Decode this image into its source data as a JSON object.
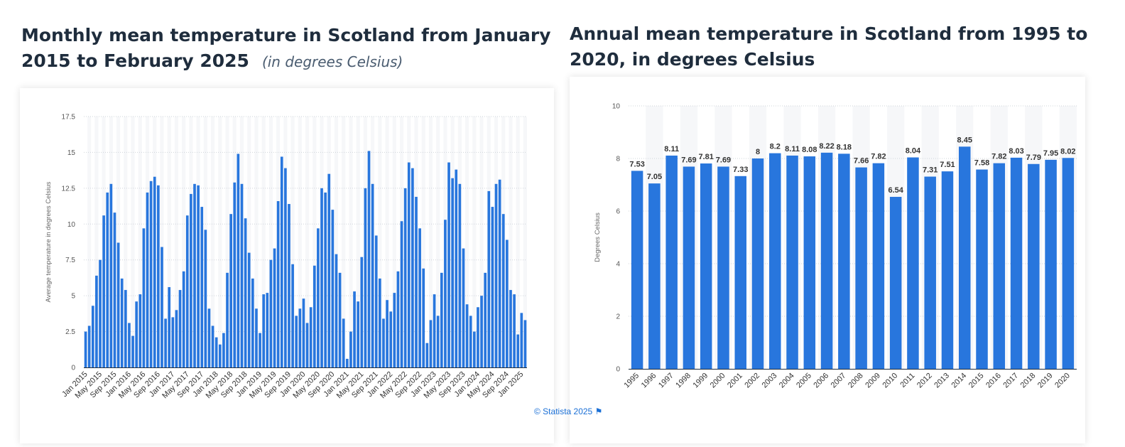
{
  "left_chart": {
    "title": "Monthly mean temperature in Scotland from January 2015 to February 2025",
    "subtitle": "(in degrees Celsius)"
  },
  "right_chart": {
    "title": "Annual mean temperature in Scotland from 1995 to 2020, in degrees Celsius"
  },
  "footer": {
    "copyright": "© Statista 2025",
    "flag_icon": "flag-icon"
  },
  "colors": {
    "bar": "#2876dd",
    "band": "#f6f7f9",
    "grid": "#cfd4da",
    "axis": "#1f2d3d",
    "link": "#1a6fd6"
  },
  "chart_data": [
    {
      "type": "bar",
      "ylabel": "Average temperature in degrees Celsius",
      "xlabel": "",
      "ylim": [
        0,
        17.5
      ],
      "yticks": [
        "0",
        "2.5",
        "5",
        "7.5",
        "10",
        "12.5",
        "15",
        "17.5"
      ],
      "grid": true,
      "categories": [
        "Jan 2015",
        "Feb 2015",
        "Mar 2015",
        "Apr 2015",
        "May 2015",
        "Jun 2015",
        "Jul 2015",
        "Aug 2015",
        "Sep 2015",
        "Oct 2015",
        "Nov 2015",
        "Dec 2015",
        "Jan 2016",
        "Feb 2016",
        "Mar 2016",
        "Apr 2016",
        "May 2016",
        "Jun 2016",
        "Jul 2016",
        "Aug 2016",
        "Sep 2016",
        "Oct 2016",
        "Nov 2016",
        "Dec 2016",
        "Jan 2017",
        "Feb 2017",
        "Mar 2017",
        "Apr 2017",
        "May 2017",
        "Jun 2017",
        "Jul 2017",
        "Aug 2017",
        "Sep 2017",
        "Oct 2017",
        "Nov 2017",
        "Dec 2017",
        "Jan 2018",
        "Feb 2018",
        "Mar 2018",
        "Apr 2018",
        "May 2018",
        "Jun 2018",
        "Jul 2018",
        "Aug 2018",
        "Sep 2018",
        "Oct 2018",
        "Nov 2018",
        "Dec 2018",
        "Jan 2019",
        "Feb 2019",
        "Mar 2019",
        "Apr 2019",
        "May 2019",
        "Jun 2019",
        "Jul 2019",
        "Aug 2019",
        "Sep 2019",
        "Oct 2019",
        "Nov 2019",
        "Dec 2019",
        "Jan 2020",
        "Feb 2020",
        "Mar 2020",
        "Apr 2020",
        "May 2020",
        "Jun 2020",
        "Jul 2020",
        "Aug 2020",
        "Sep 2020",
        "Oct 2020",
        "Nov 2020",
        "Dec 2020",
        "Jan 2021",
        "Feb 2021",
        "Mar 2021",
        "Apr 2021",
        "May 2021",
        "Jun 2021",
        "Jul 2021",
        "Aug 2021",
        "Sep 2021",
        "Oct 2021",
        "Nov 2021",
        "Dec 2021",
        "Jan 2022",
        "Feb 2022",
        "Mar 2022",
        "Apr 2022",
        "May 2022",
        "Jun 2022",
        "Jul 2022",
        "Aug 2022",
        "Sep 2022",
        "Oct 2022",
        "Nov 2022",
        "Dec 2022",
        "Jan 2023",
        "Feb 2023",
        "Mar 2023",
        "Apr 2023",
        "May 2023",
        "Jun 2023",
        "Jul 2023",
        "Aug 2023",
        "Sep 2023",
        "Oct 2023",
        "Nov 2023",
        "Dec 2023",
        "Jan 2024",
        "Feb 2024",
        "Mar 2024",
        "Apr 2024",
        "May 2024",
        "Jun 2024",
        "Jul 2024",
        "Aug 2024",
        "Sep 2024",
        "Oct 2024",
        "Nov 2024",
        "Dec 2024",
        "Jan 2025",
        "Feb 2025"
      ],
      "xtick_labels": [
        "Jan 2015",
        "May 2015",
        "Sep 2015",
        "Jan 2016",
        "May 2016",
        "Sep 2016",
        "Jan 2017",
        "May 2017",
        "Sep 2017",
        "Jan 2018",
        "May 2018",
        "Sep 2018",
        "Jan 2019",
        "May 2019",
        "Sep 2019",
        "Jan 2020",
        "May 2020",
        "Sep 2020",
        "Jan 2021",
        "May 2021",
        "Sep 2021",
        "Jan 2022",
        "May 2022",
        "Sep 2022",
        "Jan 2023",
        "May 2023",
        "Sep 2023",
        "Jan 2024",
        "May 2024",
        "Sep 2024",
        "Jan 2025"
      ],
      "values": [
        2.5,
        2.9,
        4.3,
        6.4,
        7.5,
        10.6,
        12.2,
        12.8,
        10.8,
        8.7,
        6.2,
        5.4,
        3.1,
        2.2,
        4.6,
        5.1,
        9.7,
        12.2,
        13.0,
        13.3,
        12.7,
        8.4,
        3.4,
        5.6,
        3.5,
        4.0,
        5.4,
        6.7,
        10.6,
        12.1,
        12.8,
        12.7,
        11.2,
        9.6,
        4.1,
        2.9,
        2.1,
        1.6,
        2.4,
        6.6,
        10.7,
        12.9,
        14.9,
        12.8,
        10.4,
        8.0,
        6.2,
        4.1,
        2.4,
        5.1,
        5.2,
        7.5,
        8.3,
        11.6,
        14.7,
        13.9,
        11.4,
        7.2,
        3.6,
        4.1,
        4.8,
        3.1,
        4.2,
        7.1,
        9.7,
        12.5,
        12.2,
        13.5,
        11.0,
        7.9,
        6.6,
        3.4,
        0.6,
        2.5,
        5.3,
        4.6,
        7.7,
        12.5,
        15.1,
        12.8,
        9.2,
        6.2,
        3.4,
        4.7,
        3.9,
        5.2,
        6.7,
        10.2,
        12.5,
        14.3,
        13.9,
        11.9,
        9.7,
        6.9,
        1.7,
        3.3,
        5.1,
        3.6,
        6.6,
        10.3,
        14.3,
        13.2,
        13.8,
        12.8,
        8.3,
        4.4,
        3.6,
        2.5,
        4.2,
        5.0,
        6.6,
        12.3,
        11.2,
        12.8,
        13.1,
        10.7,
        8.9,
        5.4,
        5.1,
        2.3,
        3.8,
        3.3
      ]
    },
    {
      "type": "bar",
      "ylabel": "Degrees Celsius",
      "xlabel": "",
      "ylim": [
        0,
        10
      ],
      "yticks": [
        "0",
        "2",
        "4",
        "6",
        "8",
        "10"
      ],
      "grid": true,
      "categories": [
        "1995",
        "1996",
        "1997",
        "1998",
        "1999",
        "2000",
        "2001",
        "2002",
        "2003",
        "2004",
        "2005",
        "2006",
        "2007",
        "2008",
        "2009",
        "2010",
        "2011",
        "2012",
        "2013",
        "2014",
        "2015",
        "2016",
        "2017",
        "2018",
        "2019",
        "2020"
      ],
      "values": [
        7.53,
        7.05,
        8.11,
        7.69,
        7.81,
        7.69,
        7.33,
        8,
        8.2,
        8.11,
        8.08,
        8.22,
        8.18,
        7.66,
        7.82,
        6.54,
        8.04,
        7.31,
        7.51,
        8.45,
        7.58,
        7.82,
        8.03,
        7.79,
        7.95,
        8.02
      ],
      "data_labels": [
        "7.53",
        "7.05",
        "8.11",
        "7.69",
        "7.81",
        "7.69",
        "7.33",
        "8",
        "8.2",
        "8.11",
        "8.08",
        "8.22",
        "8.18",
        "7.66",
        "7.82",
        "6.54",
        "8.04",
        "7.31",
        "7.51",
        "8.45",
        "7.58",
        "7.82",
        "8.03",
        "7.79",
        "7.95",
        "8.02"
      ]
    }
  ]
}
